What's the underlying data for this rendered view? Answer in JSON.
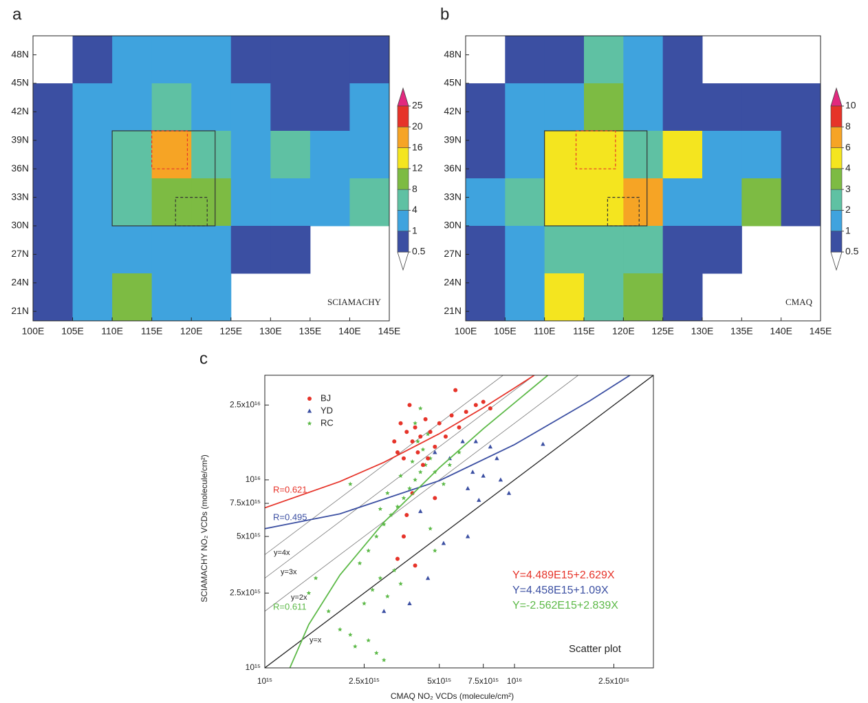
{
  "chart_data": [
    {
      "type": "heatmap",
      "panel": "a",
      "annotation": "SCIAMACHY",
      "xlim": [
        100,
        145
      ],
      "ylim": [
        20,
        50
      ],
      "xticks": [
        {
          "value": 100,
          "label": "100E"
        },
        {
          "value": 105,
          "label": "105E"
        },
        {
          "value": 110,
          "label": "110E"
        },
        {
          "value": 115,
          "label": "115E"
        },
        {
          "value": 120,
          "label": "120E"
        },
        {
          "value": 125,
          "label": "125E"
        },
        {
          "value": 130,
          "label": "130E"
        },
        {
          "value": 135,
          "label": "135E"
        },
        {
          "value": 140,
          "label": "140E"
        },
        {
          "value": 145,
          "label": "145E"
        }
      ],
      "yticks": [
        {
          "value": 21,
          "label": "21N"
        },
        {
          "value": 24,
          "label": "24N"
        },
        {
          "value": 27,
          "label": "27N"
        },
        {
          "value": 30,
          "label": "30N"
        },
        {
          "value": 33,
          "label": "33N"
        },
        {
          "value": 36,
          "label": "36N"
        },
        {
          "value": 39,
          "label": "39N"
        },
        {
          "value": 42,
          "label": "42N"
        },
        {
          "value": 45,
          "label": "45N"
        },
        {
          "value": 48,
          "label": "48N"
        }
      ],
      "x": [
        100,
        105,
        110,
        115,
        120,
        125,
        130,
        135,
        140
      ],
      "y": [
        45,
        40,
        35,
        30,
        25,
        20
      ],
      "z": [
        [
          null,
          0.8,
          1.5,
          2,
          1.5,
          0.8,
          0.7,
          0.7,
          0.7
        ],
        [
          0.8,
          1.5,
          3,
          5,
          3,
          1.5,
          0.8,
          0.8,
          1
        ],
        [
          0.8,
          2,
          6,
          18,
          5,
          2,
          6,
          1,
          1.5
        ],
        [
          0.8,
          1.5,
          6,
          10,
          8,
          1.5,
          1.5,
          2,
          4
        ],
        [
          0.8,
          1.5,
          2,
          3,
          2,
          0.8,
          0.7,
          null,
          null
        ],
        [
          0.7,
          1,
          8,
          2,
          1,
          null,
          null,
          null,
          null
        ]
      ],
      "levels": [
        0.5,
        1,
        4,
        8,
        12,
        16,
        20,
        25
      ],
      "colors": [
        "#ffffff",
        "#3b4fa2",
        "#3fa3de",
        "#5fc1a3",
        "#7dbb43",
        "#f4e51f",
        "#f6a425",
        "#e63329",
        "#e2297f"
      ],
      "boxes": [
        {
          "xlim": [
            110,
            123
          ],
          "ylim": [
            30,
            40
          ],
          "color": "#333333",
          "dashed": false
        },
        {
          "xlim": [
            115,
            119.5
          ],
          "ylim": [
            36,
            40
          ],
          "color": "#e63329",
          "dashed": true
        },
        {
          "xlim": [
            118,
            122
          ],
          "ylim": [
            30,
            33
          ],
          "color": "#333333",
          "dashed": true
        }
      ]
    },
    {
      "type": "heatmap",
      "panel": "b",
      "annotation": "CMAQ",
      "xlim": [
        100,
        145
      ],
      "ylim": [
        20,
        50
      ],
      "xticks": [
        {
          "value": 100,
          "label": "100E"
        },
        {
          "value": 105,
          "label": "105E"
        },
        {
          "value": 110,
          "label": "110E"
        },
        {
          "value": 115,
          "label": "115E"
        },
        {
          "value": 120,
          "label": "120E"
        },
        {
          "value": 125,
          "label": "125E"
        },
        {
          "value": 130,
          "label": "130E"
        },
        {
          "value": 135,
          "label": "135E"
        },
        {
          "value": 140,
          "label": "140E"
        },
        {
          "value": 145,
          "label": "145E"
        }
      ],
      "yticks": [
        {
          "value": 21,
          "label": "21N"
        },
        {
          "value": 24,
          "label": "24N"
        },
        {
          "value": 27,
          "label": "27N"
        },
        {
          "value": 30,
          "label": "30N"
        },
        {
          "value": 33,
          "label": "33N"
        },
        {
          "value": 36,
          "label": "36N"
        },
        {
          "value": 39,
          "label": "39N"
        },
        {
          "value": 42,
          "label": "42N"
        },
        {
          "value": 45,
          "label": "45N"
        },
        {
          "value": 48,
          "label": "48N"
        }
      ],
      "x": [
        100,
        105,
        110,
        115,
        120,
        125,
        130,
        135,
        140
      ],
      "y": [
        45,
        40,
        35,
        30,
        25,
        20
      ],
      "z": [
        [
          null,
          0.7,
          0.8,
          2,
          1,
          0.7,
          null,
          null,
          null
        ],
        [
          0.7,
          1,
          1.5,
          3,
          1.5,
          0.8,
          0.7,
          0.8,
          0.7
        ],
        [
          0.8,
          1.5,
          4,
          5,
          2,
          5,
          1,
          1.5,
          0.8
        ],
        [
          1,
          2,
          4,
          4,
          6,
          1,
          1.5,
          3,
          0.8
        ],
        [
          0.8,
          1.5,
          2,
          2,
          2,
          0.7,
          0.7,
          null,
          null
        ],
        [
          0.7,
          1.5,
          5,
          2,
          3,
          0.7,
          null,
          null,
          null
        ]
      ],
      "levels": [
        0.5,
        1,
        2,
        3,
        4,
        6,
        8,
        10
      ],
      "colors": [
        "#ffffff",
        "#3b4fa2",
        "#3fa3de",
        "#5fc1a3",
        "#7dbb43",
        "#f4e51f",
        "#f6a425",
        "#e63329",
        "#e2297f"
      ],
      "boxes": [
        {
          "xlim": [
            110,
            123
          ],
          "ylim": [
            30,
            40
          ],
          "color": "#333333",
          "dashed": false
        },
        {
          "xlim": [
            114,
            119
          ],
          "ylim": [
            36,
            40
          ],
          "color": "#e63329",
          "dashed": true
        },
        {
          "xlim": [
            118,
            122
          ],
          "ylim": [
            30,
            33
          ],
          "color": "#333333",
          "dashed": true
        }
      ]
    },
    {
      "type": "scatter",
      "panel": "c",
      "annotation": "Scatter plot",
      "xlabel": "CMAQ NO₂ VCDs (molecule/cm²)",
      "ylabel": "SCIAMACHY NO₂ VCDs (molecule/cm²)",
      "xscale": "log",
      "yscale": "log",
      "xlim": [
        1000000000000000.0,
        3.6e+16
      ],
      "ylim": [
        1000000000000000.0,
        3.6e+16
      ],
      "xticks": [
        {
          "value": 1000000000000000.0,
          "label": "10¹⁵"
        },
        {
          "value": 2500000000000000.0,
          "label": "2.5x10¹⁵"
        },
        {
          "value": 5000000000000000.0,
          "label": "5x10¹⁵"
        },
        {
          "value": 7500000000000000.0,
          "label": "7.5x10¹⁵"
        },
        {
          "value": 1e+16,
          "label": "10¹⁶"
        },
        {
          "value": 2.5e+16,
          "label": "2.5x10¹⁶"
        }
      ],
      "yticks": [
        {
          "value": 1000000000000000.0,
          "label": "10¹⁵"
        },
        {
          "value": 2500000000000000.0,
          "label": "2.5x10¹⁵"
        },
        {
          "value": 5000000000000000.0,
          "label": "5x10¹⁵"
        },
        {
          "value": 7500000000000000.0,
          "label": "7.5x10¹⁵"
        },
        {
          "value": 1e+16,
          "label": "10¹⁶"
        },
        {
          "value": 2.5e+16,
          "label": "2.5x10¹⁶"
        }
      ],
      "series": [
        {
          "name": "BJ",
          "color": "#e63329",
          "marker": "circle",
          "x": [
            3500000000000000.0,
            3700000000000000.0,
            3900000000000000.0,
            4000000000000000.0,
            4200000000000000.0,
            4400000000000000.0,
            4600000000000000.0,
            4800000000000000.0,
            5000000000000000.0,
            5300000000000000.0,
            5600000000000000.0,
            6000000000000000.0,
            6400000000000000.0,
            7000000000000000.0,
            7500000000000000.0,
            8000000000000000.0,
            5800000000000000.0,
            3400000000000000.0,
            3600000000000000.0,
            4100000000000000.0,
            4500000000000000.0,
            3300000000000000.0,
            3800000000000000.0,
            4300000000000000.0,
            3900000000000000.0,
            3700000000000000.0,
            3600000000000000.0,
            3400000000000000.0,
            4000000000000000.0,
            4800000000000000.0
          ],
          "values": [
            2e+16,
            1.8e+16,
            1.6e+16,
            1.9e+16,
            1.7e+16,
            2.1e+16,
            1.8e+16,
            1.5e+16,
            2e+16,
            1.7e+16,
            2.2e+16,
            1.9e+16,
            2.3e+16,
            2.5e+16,
            2.6e+16,
            2.4e+16,
            3e+16,
            1.4e+16,
            1.3e+16,
            1.4e+16,
            1.3e+16,
            1.6e+16,
            2.5e+16,
            1.2e+16,
            8500000000000000.0,
            6500000000000000.0,
            5000000000000000.0,
            3800000000000000.0,
            3500000000000000.0,
            8000000000000000.0
          ]
        },
        {
          "name": "YD",
          "color": "#3b4fa2",
          "marker": "triangle",
          "x": [
            4800000000000000.0,
            5500000000000000.0,
            6200000000000000.0,
            7000000000000000.0,
            8000000000000000.0,
            8500000000000000.0,
            1.3e+16,
            6800000000000000.0,
            7500000000000000.0,
            8800000000000000.0,
            9500000000000000.0,
            6500000000000000.0,
            7200000000000000.0,
            6500000000000000.0,
            5200000000000000.0,
            4500000000000000.0,
            3800000000000000.0,
            3000000000000000.0,
            4200000000000000.0
          ],
          "values": [
            1.4e+16,
            1.3e+16,
            1.6e+16,
            1.6e+16,
            1.5e+16,
            1.3e+16,
            1.55e+16,
            1.1e+16,
            1.05e+16,
            1e+16,
            8500000000000000.0,
            9000000000000000.0,
            7800000000000000.0,
            5000000000000000.0,
            4600000000000000.0,
            3000000000000000.0,
            2200000000000000.0,
            2000000000000000.0,
            6800000000000000.0
          ]
        },
        {
          "name": "RC",
          "color": "#5cb947",
          "marker": "star",
          "x": [
            1600000000000000.0,
            1800000000000000.0,
            2000000000000000.0,
            2200000000000000.0,
            2300000000000000.0,
            2600000000000000.0,
            2800000000000000.0,
            3000000000000000.0,
            2500000000000000.0,
            2700000000000000.0,
            2900000000000000.0,
            3100000000000000.0,
            3300000000000000.0,
            3500000000000000.0,
            2400000000000000.0,
            2600000000000000.0,
            2800000000000000.0,
            3000000000000000.0,
            3200000000000000.0,
            3400000000000000.0,
            3600000000000000.0,
            3800000000000000.0,
            4000000000000000.0,
            4200000000000000.0,
            4400000000000000.0,
            4600000000000000.0,
            4800000000000000.0,
            3100000000000000.0,
            2900000000000000.0,
            3500000000000000.0,
            3900000000000000.0,
            4300000000000000.0,
            4100000000000000.0,
            4500000000000000.0,
            4000000000000000.0,
            4200000000000000.0,
            5200000000000000.0,
            5500000000000000.0,
            6000000000000000.0,
            2200000000000000.0,
            1500000000000000.0,
            4600000000000000.0,
            4800000000000000.0
          ],
          "values": [
            3000000000000000.0,
            2000000000000000.0,
            1600000000000000.0,
            1500000000000000.0,
            1300000000000000.0,
            1400000000000000.0,
            1200000000000000.0,
            1100000000000000.0,
            2200000000000000.0,
            2600000000000000.0,
            3000000000000000.0,
            2400000000000000.0,
            3300000000000000.0,
            2800000000000000.0,
            3600000000000000.0,
            4200000000000000.0,
            5000000000000000.0,
            5800000000000000.0,
            6500000000000000.0,
            7200000000000000.0,
            8000000000000000.0,
            9000000000000000.0,
            1e+16,
            1.1e+16,
            1.2e+16,
            1.3e+16,
            1.1e+16,
            8500000000000000.0,
            7000000000000000.0,
            1.05e+16,
            1.25e+16,
            1.45e+16,
            1.6e+16,
            1.75e+16,
            2e+16,
            2.4e+16,
            9500000000000000.0,
            1.2e+16,
            1.4e+16,
            9500000000000000.0,
            2500000000000000.0,
            5500000000000000.0,
            4200000000000000.0
          ]
        }
      ],
      "fits": [
        {
          "label": "R=0.621",
          "color": "#e63329",
          "x": [
            1000000000000000.0,
            2000000000000000.0,
            3000000000000000.0,
            5000000000000000.0,
            7500000000000000.0,
            1e+16,
            1.2e+16
          ],
          "y": [
            7100000000000000.0,
            9800000000000000.0,
            1.24e+16,
            1.76e+16,
            2.42e+16,
            3.08e+16,
            3.6e+16
          ]
        },
        {
          "label": "R=0.495",
          "color": "#3b4fa2",
          "x": [
            1000000000000000.0,
            2000000000000000.0,
            5000000000000000.0,
            1e+16,
            2e+16,
            2.9e+16
          ],
          "y": [
            5500000000000000.0,
            6600000000000000.0,
            9900000000000000.0,
            1.54e+16,
            2.63e+16,
            3.6e+16
          ]
        },
        {
          "label": "R=0.611",
          "color": "#5cb947",
          "x": [
            1260000000000000.0,
            1500000000000000.0,
            2000000000000000.0,
            3000000000000000.0,
            5000000000000000.0,
            7500000000000000.0,
            1.36e+16
          ],
          "y": [
            1000000000000000.0,
            1700000000000000.0,
            3120000000000000.0,
            5950000000000000.0,
            1.16e+16,
            1.87e+16,
            3.6e+16
          ]
        }
      ],
      "reference_lines": [
        {
          "label": "y=4x",
          "x": [
            1000000000000000.0,
            9000000000000000.0
          ],
          "y": [
            4000000000000000.0,
            3.6e+16
          ]
        },
        {
          "label": "y=3x",
          "x": [
            1000000000000000.0,
            1.2e+16
          ],
          "y": [
            3000000000000000.0,
            3.6e+16
          ]
        },
        {
          "label": "y=2x",
          "x": [
            1000000000000000.0,
            1.8e+16
          ],
          "y": [
            2000000000000000.0,
            3.6e+16
          ]
        },
        {
          "label": "y=x",
          "x": [
            1000000000000000.0,
            3.6e+16
          ],
          "y": [
            1000000000000000.0,
            3.6e+16
          ]
        }
      ],
      "equations": [
        {
          "text": "Y=4.489E15+2.629X",
          "color": "#e63329"
        },
        {
          "text": "Y=4.458E15+1.09X",
          "color": "#3b4fa2"
        },
        {
          "text": "Y=-2.562E15+2.839X",
          "color": "#5cb947"
        }
      ]
    }
  ]
}
